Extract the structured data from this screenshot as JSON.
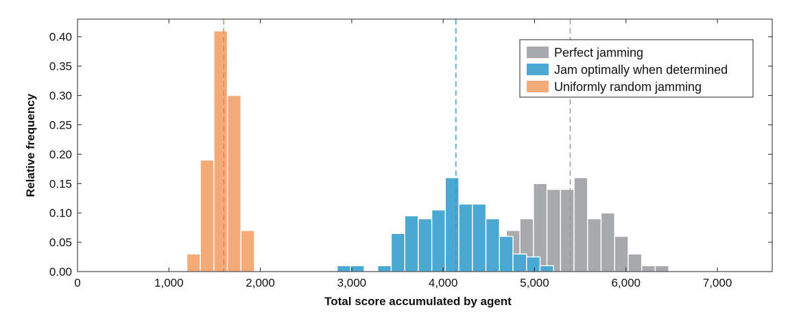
{
  "chart_data": {
    "type": "bar",
    "xlabel": "Total score accumulated by agent",
    "ylabel": "Relative frequency",
    "xlim": [
      0,
      7600
    ],
    "ylim": [
      0,
      0.43
    ],
    "xticks": [
      0,
      1000,
      2000,
      3000,
      4000,
      5000,
      6000,
      7000
    ],
    "xtick_labels": [
      "0",
      "1,000",
      "2,000",
      "3,000",
      "4,000",
      "5,000",
      "6,000",
      "7,000"
    ],
    "yticks": [
      0,
      0.05,
      0.1,
      0.15,
      0.2,
      0.25,
      0.3,
      0.35,
      0.4
    ],
    "ytick_labels": [
      "0.00",
      "0.05",
      "0.10",
      "0.15",
      "0.20",
      "0.25",
      "0.30",
      "0.35",
      "0.40"
    ],
    "grid": false,
    "legend_position": "top-right",
    "bin_width": 148,
    "series": [
      {
        "name": "Perfect jamming",
        "color": "#a7a9ac",
        "mean": 5390,
        "bins": [
          {
            "x": 4692,
            "y": 0.07
          },
          {
            "x": 4840,
            "y": 0.09
          },
          {
            "x": 4988,
            "y": 0.15
          },
          {
            "x": 5136,
            "y": 0.14
          },
          {
            "x": 5284,
            "y": 0.14
          },
          {
            "x": 5432,
            "y": 0.16
          },
          {
            "x": 5580,
            "y": 0.09
          },
          {
            "x": 5728,
            "y": 0.1
          },
          {
            "x": 5876,
            "y": 0.06
          },
          {
            "x": 6024,
            "y": 0.03
          },
          {
            "x": 6172,
            "y": 0.01
          },
          {
            "x": 6320,
            "y": 0.01
          }
        ]
      },
      {
        "name": "Jam optimally when determined",
        "color": "#4aa8d2",
        "mean": 4140,
        "bins": [
          {
            "x": 2840,
            "y": 0.01
          },
          {
            "x": 2988,
            "y": 0.01
          },
          {
            "x": 3284,
            "y": 0.01
          },
          {
            "x": 3432,
            "y": 0.065
          },
          {
            "x": 3580,
            "y": 0.095
          },
          {
            "x": 3728,
            "y": 0.09
          },
          {
            "x": 3876,
            "y": 0.105
          },
          {
            "x": 4024,
            "y": 0.16
          },
          {
            "x": 4172,
            "y": 0.115
          },
          {
            "x": 4320,
            "y": 0.115
          },
          {
            "x": 4468,
            "y": 0.09
          },
          {
            "x": 4616,
            "y": 0.06
          },
          {
            "x": 4764,
            "y": 0.03
          },
          {
            "x": 4912,
            "y": 0.025
          },
          {
            "x": 5060,
            "y": 0.01
          }
        ]
      },
      {
        "name": "Uniformly random jamming",
        "color": "#f4ab78",
        "mean": 1600,
        "bins": [
          {
            "x": 1196,
            "y": 0.03
          },
          {
            "x": 1344,
            "y": 0.19
          },
          {
            "x": 1492,
            "y": 0.41
          },
          {
            "x": 1640,
            "y": 0.3
          },
          {
            "x": 1788,
            "y": 0.07
          }
        ]
      }
    ]
  }
}
